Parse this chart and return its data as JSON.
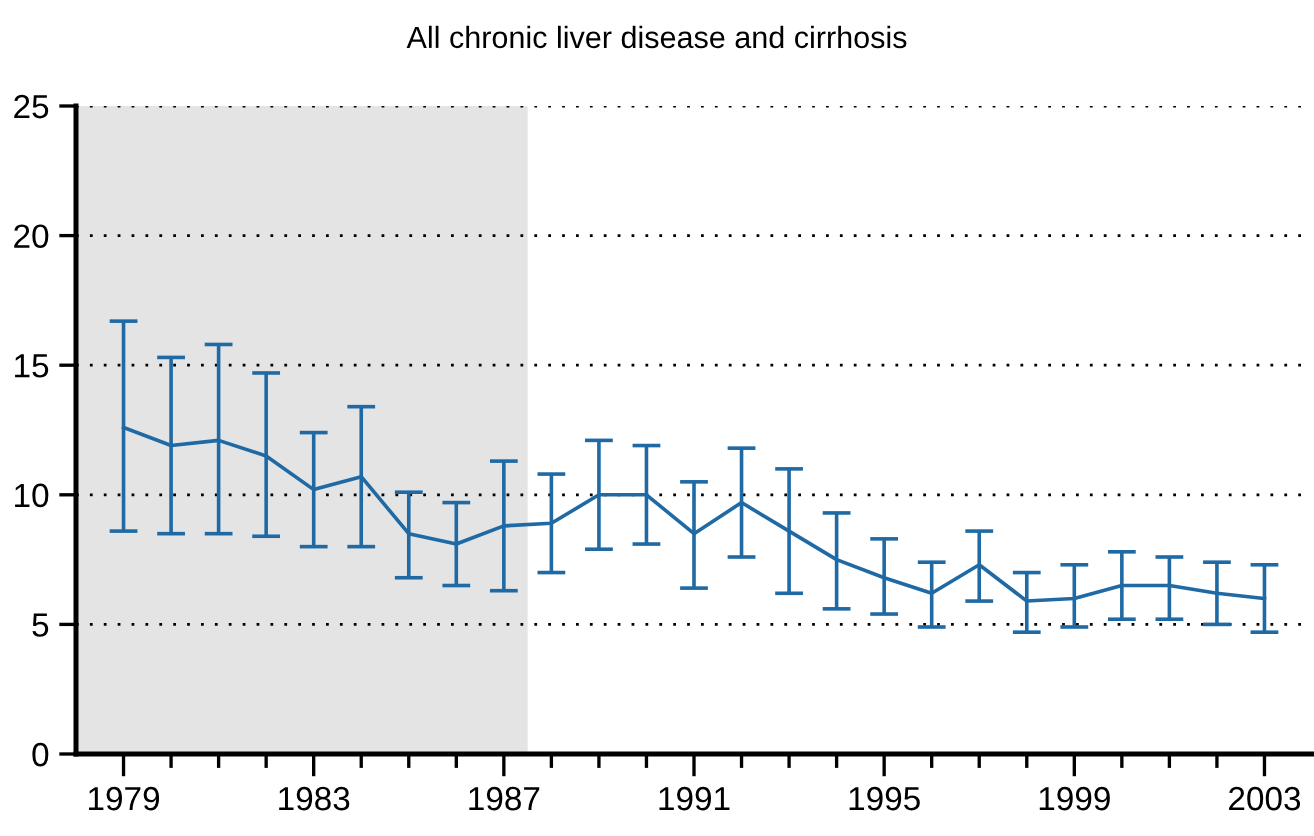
{
  "chart_data": {
    "type": "line",
    "title": "All chronic liver disease and cirrhosis",
    "x": [
      1979,
      1980,
      1981,
      1982,
      1983,
      1984,
      1985,
      1986,
      1987,
      1988,
      1989,
      1990,
      1991,
      1992,
      1993,
      1994,
      1995,
      1996,
      1997,
      1998,
      1999,
      2000,
      2001,
      2002,
      2003
    ],
    "series": [
      {
        "color": "#1f6aa5",
        "values": [
          12.6,
          11.9,
          12.1,
          11.5,
          10.2,
          10.7,
          8.5,
          8.1,
          8.8,
          8.9,
          10.0,
          10.0,
          8.5,
          9.7,
          8.6,
          7.5,
          6.8,
          6.2,
          7.3,
          5.9,
          6.0,
          6.5,
          6.5,
          6.2,
          6.0
        ],
        "errors": [
          [
            8.6,
            16.7
          ],
          [
            8.5,
            15.3
          ],
          [
            8.5,
            15.8
          ],
          [
            8.4,
            14.7
          ],
          [
            8.0,
            12.4
          ],
          [
            8.0,
            13.4
          ],
          [
            6.8,
            10.1
          ],
          [
            6.5,
            9.7
          ],
          [
            6.3,
            11.3
          ],
          [
            7.0,
            10.8
          ],
          [
            7.9,
            12.1
          ],
          [
            8.1,
            11.9
          ],
          [
            6.4,
            10.5
          ],
          [
            7.6,
            11.8
          ],
          [
            6.2,
            11.0
          ],
          [
            5.6,
            9.3
          ],
          [
            5.4,
            8.3
          ],
          [
            4.9,
            7.4
          ],
          [
            5.9,
            8.6
          ],
          [
            4.7,
            7.0
          ],
          [
            4.9,
            7.3
          ],
          [
            5.2,
            7.8
          ],
          [
            5.2,
            7.6
          ],
          [
            5.0,
            7.4
          ],
          [
            4.7,
            7.3
          ]
        ]
      }
    ],
    "xlim": [
      1978,
      2004
    ],
    "xticks": [
      1979,
      {
        "value": 1980,
        "label": null
      },
      {
        "value": 1981,
        "label": null
      },
      {
        "value": 1982,
        "label": null
      },
      1983,
      {
        "value": 1984,
        "label": null
      },
      {
        "value": 1985,
        "label": null
      },
      {
        "value": 1986,
        "label": null
      },
      1987,
      {
        "value": 1988,
        "label": null
      },
      {
        "value": 1989,
        "label": null
      },
      {
        "value": 1990,
        "label": null
      },
      1991,
      {
        "value": 1992,
        "label": null
      },
      {
        "value": 1993,
        "label": null
      },
      {
        "value": 1994,
        "label": null
      },
      1995,
      {
        "value": 1996,
        "label": null
      },
      {
        "value": 1997,
        "label": null
      },
      {
        "value": 1998,
        "label": null
      },
      1999,
      {
        "value": 2000,
        "label": null
      },
      {
        "value": 2001,
        "label": null
      },
      {
        "value": 2002,
        "label": null
      },
      2003
    ],
    "ylim": [
      0,
      25
    ],
    "yticks": [
      0,
      5,
      10,
      15,
      20,
      25
    ],
    "grid": "y",
    "line_style": "solid",
    "marker": "none",
    "bands": [
      {
        "axis": "x",
        "from": 1978,
        "to": 1987.5,
        "color": "#e4e4e4"
      }
    ]
  }
}
